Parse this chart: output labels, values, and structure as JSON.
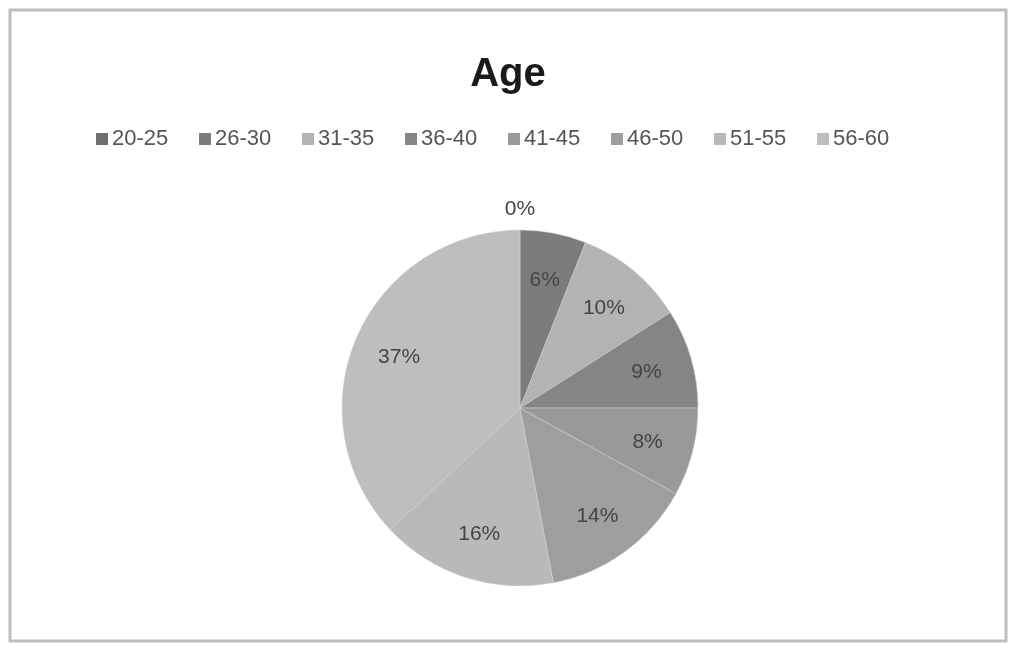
{
  "chart_data": {
    "type": "pie",
    "title": "Age",
    "categories": [
      "20-25",
      "26-30",
      "31-35",
      "36-40",
      "41-45",
      "46-50",
      "51-55",
      "56-60"
    ],
    "values": [
      0,
      6,
      10,
      9,
      8,
      14,
      16,
      37
    ],
    "colors": [
      "#6f6f6f",
      "#7c7c7c",
      "#b3b3b3",
      "#858585",
      "#999999",
      "#9e9e9e",
      "#b9b9b9",
      "#bebebe"
    ],
    "value_labels": [
      "0%",
      "6%",
      "10%",
      "9%",
      "8%",
      "14%",
      "16%",
      "37%"
    ],
    "legend": "top"
  }
}
